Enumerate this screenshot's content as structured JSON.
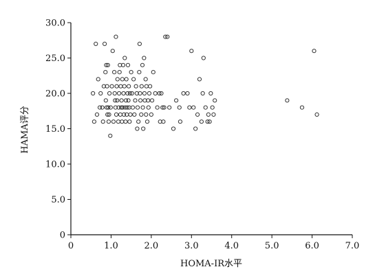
{
  "chart_data": {
    "type": "scatter",
    "title": "",
    "xlabel": "HOMA-IR水平",
    "ylabel": "HAMA评分",
    "xlim": [
      0,
      7
    ],
    "ylim": [
      0,
      30
    ],
    "x_ticks": [
      "0",
      "1.0",
      "2.0",
      "3.0",
      "4.0",
      "5.0",
      "6.0",
      "7.0"
    ],
    "y_ticks": [
      "0",
      "5.0",
      "10.0",
      "15.0",
      "20.0",
      "25.0",
      "30.0"
    ],
    "grid": false,
    "marker": "open-circle",
    "colors": {
      "axis": "#111111",
      "marker": "#333333",
      "background": "#ffffff"
    },
    "series": [
      {
        "points": [
          [
            0.55,
            20
          ],
          [
            0.58,
            16
          ],
          [
            0.62,
            27
          ],
          [
            0.65,
            17
          ],
          [
            0.68,
            22
          ],
          [
            0.72,
            18
          ],
          [
            0.74,
            20
          ],
          [
            0.78,
            18
          ],
          [
            0.8,
            16
          ],
          [
            0.82,
            21
          ],
          [
            0.84,
            27
          ],
          [
            0.86,
            23
          ],
          [
            0.87,
            19
          ],
          [
            0.88,
            24
          ],
          [
            0.89,
            18
          ],
          [
            0.9,
            21
          ],
          [
            0.91,
            17
          ],
          [
            0.92,
            24
          ],
          [
            0.93,
            18
          ],
          [
            0.94,
            16
          ],
          [
            0.95,
            17
          ],
          [
            0.96,
            20
          ],
          [
            0.98,
            14
          ],
          [
            0.99,
            18
          ],
          [
            1.02,
            21
          ],
          [
            1.04,
            26
          ],
          [
            1.06,
            16
          ],
          [
            1.08,
            23
          ],
          [
            1.09,
            20
          ],
          [
            1.1,
            19
          ],
          [
            1.11,
            18
          ],
          [
            1.12,
            28
          ],
          [
            1.13,
            17
          ],
          [
            1.14,
            21
          ],
          [
            1.15,
            19
          ],
          [
            1.16,
            22
          ],
          [
            1.18,
            16
          ],
          [
            1.19,
            18
          ],
          [
            1.2,
            20
          ],
          [
            1.21,
            23
          ],
          [
            1.22,
            24
          ],
          [
            1.23,
            17
          ],
          [
            1.24,
            21
          ],
          [
            1.25,
            18
          ],
          [
            1.26,
            19
          ],
          [
            1.27,
            16
          ],
          [
            1.28,
            22
          ],
          [
            1.29,
            18
          ],
          [
            1.3,
            24
          ],
          [
            1.31,
            20
          ],
          [
            1.32,
            17
          ],
          [
            1.33,
            21
          ],
          [
            1.34,
            25
          ],
          [
            1.35,
            18
          ],
          [
            1.36,
            16
          ],
          [
            1.37,
            19
          ],
          [
            1.38,
            22
          ],
          [
            1.39,
            17
          ],
          [
            1.4,
            18
          ],
          [
            1.41,
            20
          ],
          [
            1.42,
            24
          ],
          [
            1.43,
            19
          ],
          [
            1.44,
            21
          ],
          [
            1.45,
            18
          ],
          [
            1.46,
            16
          ],
          [
            1.47,
            20
          ],
          [
            1.48,
            17
          ],
          [
            1.5,
            23
          ],
          [
            1.52,
            20
          ],
          [
            1.54,
            18
          ],
          [
            1.56,
            22
          ],
          [
            1.58,
            17
          ],
          [
            1.6,
            19
          ],
          [
            1.62,
            21
          ],
          [
            1.64,
            20
          ],
          [
            1.65,
            15
          ],
          [
            1.66,
            18
          ],
          [
            1.68,
            16
          ],
          [
            1.7,
            23
          ],
          [
            1.71,
            27
          ],
          [
            1.72,
            20
          ],
          [
            1.73,
            19
          ],
          [
            1.75,
            17
          ],
          [
            1.76,
            21
          ],
          [
            1.78,
            24
          ],
          [
            1.79,
            18
          ],
          [
            1.8,
            15
          ],
          [
            1.82,
            25
          ],
          [
            1.83,
            20
          ],
          [
            1.84,
            19
          ],
          [
            1.86,
            22
          ],
          [
            1.87,
            17
          ],
          [
            1.88,
            21
          ],
          [
            1.9,
            16
          ],
          [
            1.92,
            19
          ],
          [
            1.93,
            18
          ],
          [
            1.95,
            20
          ],
          [
            1.97,
            21
          ],
          [
            2.0,
            17
          ],
          [
            2.02,
            19
          ],
          [
            2.05,
            23
          ],
          [
            2.1,
            20
          ],
          [
            2.15,
            18
          ],
          [
            2.2,
            20
          ],
          [
            2.22,
            16
          ],
          [
            2.25,
            20
          ],
          [
            2.28,
            18
          ],
          [
            2.3,
            16
          ],
          [
            2.32,
            18
          ],
          [
            2.35,
            28
          ],
          [
            2.4,
            28
          ],
          [
            2.45,
            18
          ],
          [
            2.55,
            15
          ],
          [
            2.62,
            19
          ],
          [
            2.7,
            18
          ],
          [
            2.72,
            16
          ],
          [
            2.8,
            20
          ],
          [
            2.9,
            20
          ],
          [
            2.95,
            18
          ],
          [
            3.0,
            26
          ],
          [
            3.05,
            18
          ],
          [
            3.1,
            15
          ],
          [
            3.15,
            17
          ],
          [
            3.2,
            22
          ],
          [
            3.25,
            16
          ],
          [
            3.28,
            20
          ],
          [
            3.3,
            25
          ],
          [
            3.35,
            18
          ],
          [
            3.4,
            16
          ],
          [
            3.42,
            17
          ],
          [
            3.45,
            16
          ],
          [
            3.48,
            20
          ],
          [
            3.52,
            18
          ],
          [
            3.55,
            17
          ],
          [
            3.58,
            19
          ],
          [
            5.38,
            19
          ],
          [
            5.75,
            18
          ],
          [
            6.05,
            26
          ],
          [
            6.12,
            17
          ]
        ]
      }
    ]
  }
}
